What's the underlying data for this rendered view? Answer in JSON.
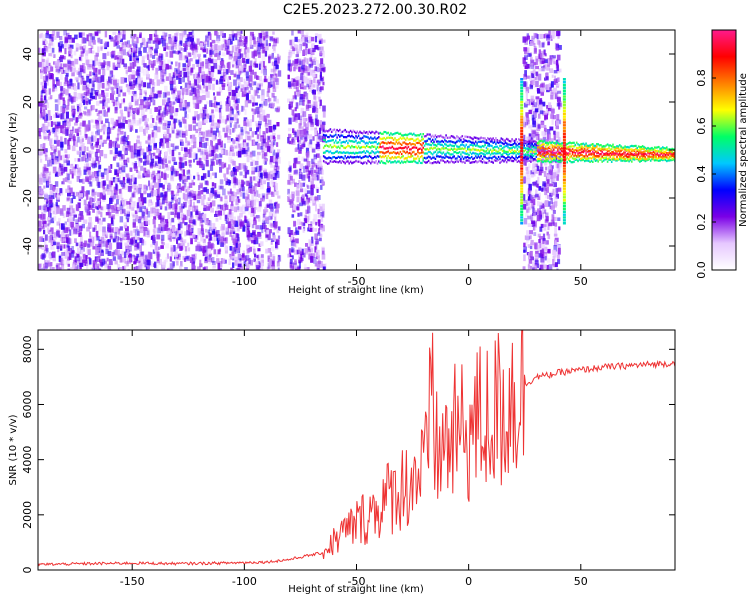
{
  "title": "C2E5.2023.272.00.30.R02",
  "chart_data": [
    {
      "type": "heatmap",
      "xlabel": "Height of straight line (km)",
      "ylabel": "Frequency (Hz)",
      "xlim": [
        -192,
        92
      ],
      "ylim": [
        -50,
        50
      ],
      "xticks": [
        -150,
        -100,
        -50,
        0,
        50
      ],
      "yticks": [
        -40,
        -20,
        0,
        20,
        40
      ],
      "colorbar": {
        "label": "Normalized spectral amplitude",
        "range": [
          0,
          1
        ],
        "ticks": [
          "0.0",
          "0.2",
          "0.4",
          "0.6",
          "0.8"
        ],
        "colormap": [
          "#ffffff",
          "#e6c8ff",
          "#7a00e6",
          "#0000ff",
          "#00c8ff",
          "#00ff66",
          "#ffff00",
          "#ff8000",
          "#ff0000",
          "#ff1a8c"
        ]
      },
      "features": {
        "noise_regions_km": [
          [
            -192,
            -85
          ],
          [
            -81,
            -65
          ],
          [
            24,
            40
          ]
        ],
        "ridge_start_km": -65,
        "ridge_frequency_hz_at_start": 2,
        "ridge_frequency_hz_at_end": -1.5,
        "strong_amplitude_segments_km": [
          [
            -40,
            -20
          ],
          [
            30,
            92
          ]
        ],
        "vertical_spikes_km": [
          23,
          42
        ]
      }
    },
    {
      "type": "line",
      "xlabel": "Height of straight line (km)",
      "ylabel": "SNR (10 * v/v)",
      "xlim": [
        -192,
        92
      ],
      "ylim": [
        0,
        8700
      ],
      "xticks": [
        -150,
        -100,
        -50,
        0,
        50
      ],
      "yticks": [
        0,
        2000,
        4000,
        6000,
        8000
      ],
      "series": [
        {
          "color": "#ee3333",
          "x": [
            -192,
            -170,
            -150,
            -130,
            -110,
            -90,
            -80,
            -70,
            -65,
            -62,
            -55,
            -50,
            -45,
            -40,
            -35,
            -30,
            -25,
            -20,
            -18,
            -16,
            -15,
            -12,
            -8,
            -5,
            0,
            5,
            10,
            15,
            20,
            25,
            30,
            35,
            40,
            50,
            60,
            70,
            80,
            92
          ],
          "values": [
            200,
            230,
            250,
            230,
            250,
            290,
            380,
            550,
            620,
            900,
            1400,
            1700,
            2000,
            2300,
            2700,
            3000,
            3300,
            3700,
            3900,
            8600,
            4200,
            4400,
            4700,
            4900,
            5000,
            5400,
            5500,
            5900,
            6400,
            6700,
            7000,
            7050,
            7150,
            7250,
            7350,
            7400,
            7450,
            7500
          ]
        }
      ]
    }
  ]
}
